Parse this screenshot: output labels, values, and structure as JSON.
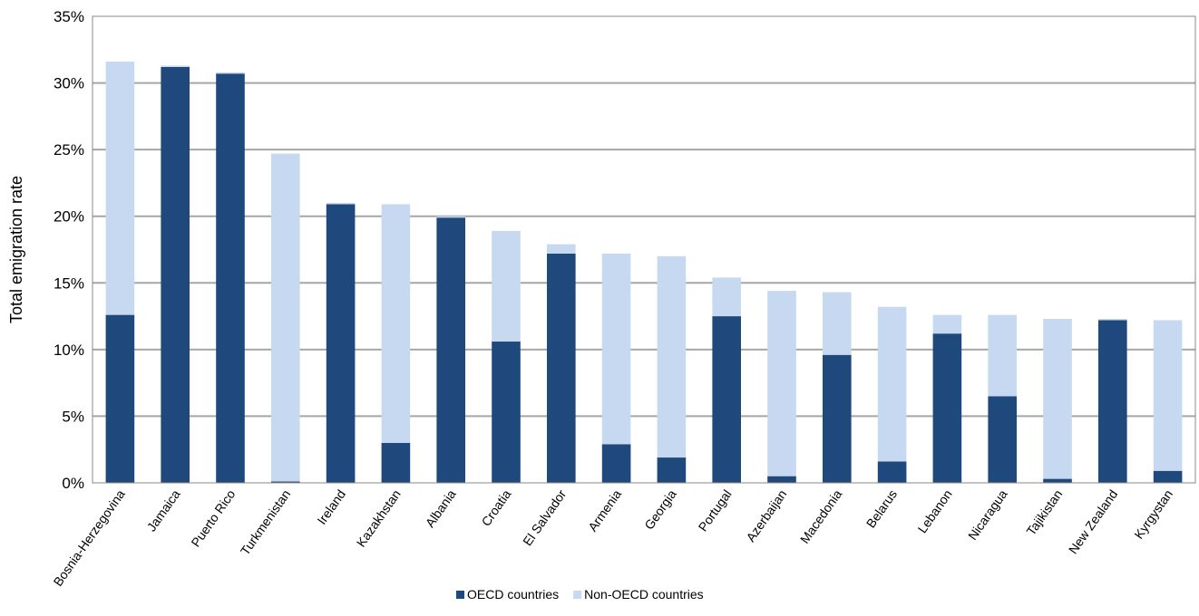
{
  "chart_data": {
    "type": "bar",
    "stacked": true,
    "ylabel": "Total emigration rate",
    "ylim": [
      0,
      35
    ],
    "yticks": [
      "0%",
      "5%",
      "10%",
      "15%",
      "20%",
      "25%",
      "30%",
      "35%"
    ],
    "grid": true,
    "legend_position": "bottom",
    "categories": [
      "Bosnia-Herzegovina",
      "Jamaica",
      "Puerto Rico",
      "Turkmenistan",
      "Ireland",
      "Kazakhstan",
      "Albania",
      "Croatia",
      "El Salvador",
      "Armenia",
      "Georgia",
      "Portugal",
      "Azerbaijan",
      "Macedonia",
      "Belarus",
      "Lebanon",
      "Nicaragua",
      "Tajikistan",
      "New Zealand",
      "Kyrgystan"
    ],
    "series": [
      {
        "name": "OECD countries",
        "color": "#1F497D",
        "values": [
          12.6,
          31.2,
          30.7,
          0.1,
          20.9,
          3.0,
          19.9,
          10.6,
          17.2,
          2.9,
          1.9,
          12.5,
          0.5,
          9.6,
          1.6,
          11.2,
          6.5,
          0.3,
          12.2,
          0.9
        ]
      },
      {
        "name": "Non-OECD countries",
        "color": "#C6D9F1",
        "values": [
          19.0,
          0.1,
          0.1,
          24.6,
          0.1,
          17.9,
          0.1,
          8.3,
          0.7,
          14.3,
          15.1,
          2.9,
          13.9,
          4.7,
          11.6,
          1.4,
          6.1,
          12.0,
          0.1,
          11.3
        ]
      }
    ]
  }
}
